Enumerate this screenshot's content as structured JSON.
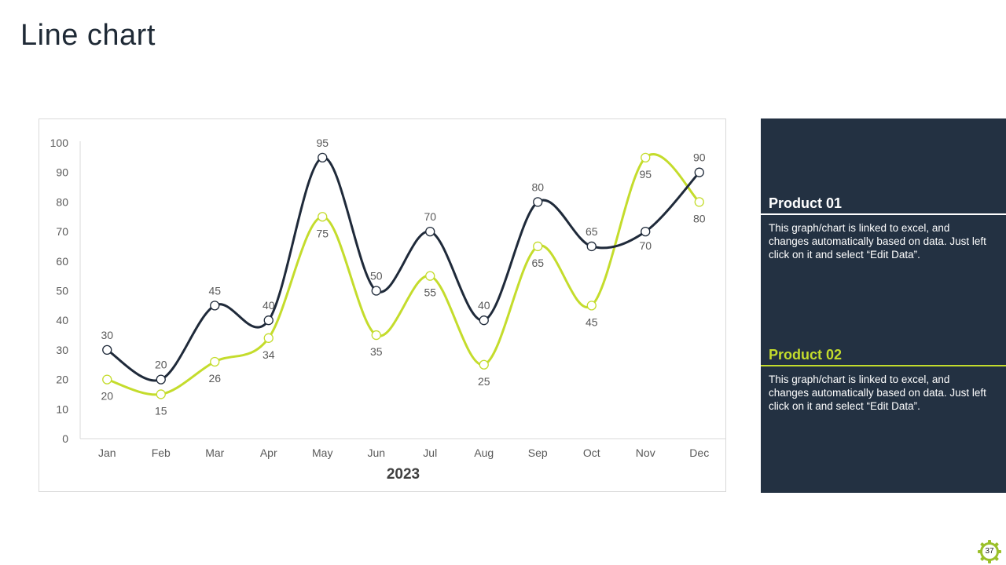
{
  "page": {
    "title": "Line chart",
    "page_number": "37"
  },
  "colors": {
    "series_1": "#1f2a3a",
    "series_2": "#c4dc2c",
    "panel_bg": "#233142",
    "axis_text": "#595959",
    "grid_line": "#d9d9d9",
    "badge": "#9bc02a"
  },
  "chart_data": {
    "type": "line",
    "categories": [
      "Jan",
      "Feb",
      "Mar",
      "Apr",
      "May",
      "Jun",
      "Jul",
      "Aug",
      "Sep",
      "Oct",
      "Nov",
      "Dec"
    ],
    "series": [
      {
        "values": [
          30,
          20,
          45,
          40,
          95,
          50,
          70,
          40,
          80,
          65,
          70,
          90
        ]
      },
      {
        "values": [
          20,
          15,
          26,
          34,
          75,
          35,
          55,
          25,
          65,
          45,
          95,
          80
        ]
      }
    ],
    "xlabel": "2023",
    "ylabel": "",
    "ylim": [
      0,
      100
    ],
    "yticks": [
      0,
      10,
      20,
      30,
      40,
      50,
      60,
      70,
      80,
      90,
      100
    ],
    "smooth": true,
    "grid": false,
    "data_labels": true
  },
  "side_panel": {
    "products": [
      {
        "title": "Product 01",
        "description": "This graph/chart is linked to excel, and changes automatically based on data. Just left click on it and select “Edit Data”."
      },
      {
        "title": "Product 02",
        "description": "This graph/chart is linked to excel, and changes automatically based on data. Just left click on it and select “Edit Data”."
      }
    ]
  }
}
